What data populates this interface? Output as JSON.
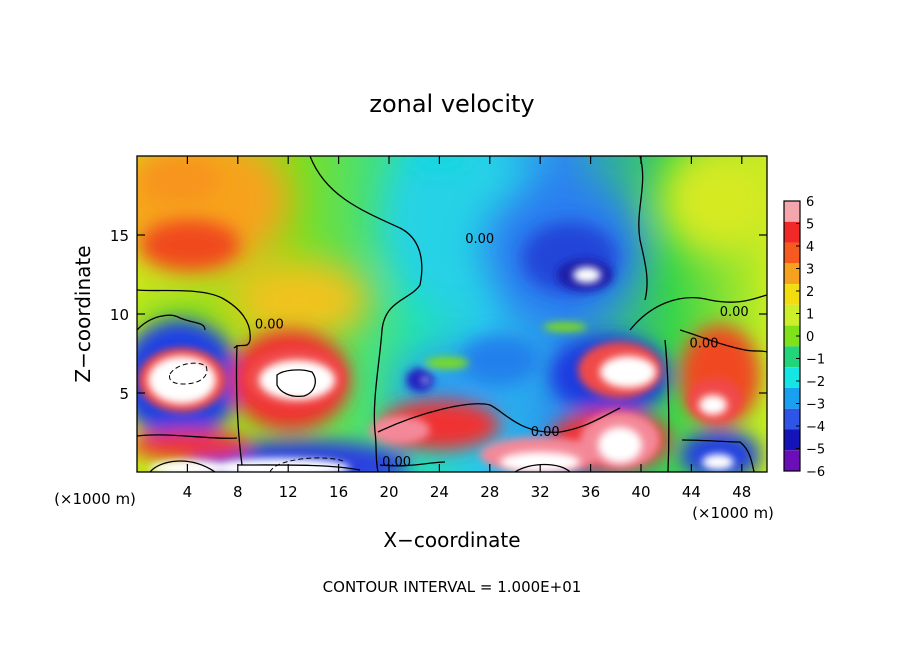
{
  "chart_data": {
    "type": "heatmap",
    "title": "zonal velocity",
    "xlabel": "X−coordinate",
    "ylabel": "Z−coordinate",
    "x_unit_left": "(×1000 m)",
    "x_unit_right": "(×1000 m)",
    "footer": "CONTOUR INTERVAL = 1.000E+01",
    "xlim": [
      0,
      50
    ],
    "ylim": [
      0,
      20
    ],
    "x_ticks": [
      4,
      8,
      12,
      16,
      20,
      24,
      28,
      32,
      36,
      40,
      44,
      48
    ],
    "x_tick_labels": [
      "4",
      "8",
      "12",
      "16",
      "20",
      "24",
      "28",
      "32",
      "36",
      "40",
      "44",
      "48"
    ],
    "y_ticks": [
      5,
      10,
      15
    ],
    "y_tick_labels": [
      "5",
      "10",
      "15"
    ],
    "colorbar": {
      "range": [
        -6,
        6
      ],
      "tick_labels": [
        "6",
        "5",
        "4",
        "3",
        "2",
        "1",
        "0",
        "−1",
        "−2",
        "−3",
        "−4",
        "−5",
        "−6"
      ],
      "colors": [
        "#f4a6ad",
        "#f02828",
        "#f75a1e",
        "#f7a21e",
        "#f2de10",
        "#cdee2a",
        "#7ee11a",
        "#22d47a",
        "#14e6e6",
        "#1aa0f0",
        "#2e54e8",
        "#1414b8",
        "#6a0eb8"
      ]
    },
    "contour_labels": [
      {
        "x": 27.2,
        "z": 14.8,
        "text": "0.00"
      },
      {
        "x": 10.5,
        "z": 9.4,
        "text": "0.00"
      },
      {
        "x": 47.4,
        "z": 10.2,
        "text": "0.00"
      },
      {
        "x": 45.0,
        "z": 8.2,
        "text": "0.00"
      },
      {
        "x": 32.4,
        "z": 2.6,
        "text": "0.00"
      },
      {
        "x": 20.6,
        "z": 0.7,
        "text": "0.00"
      }
    ],
    "features": [
      {
        "x": 4.5,
        "z": 15.2,
        "value": 4
      },
      {
        "x": 8.0,
        "z": 18.5,
        "value": 3
      },
      {
        "x": 14.0,
        "z": 12.0,
        "value": 2.5
      },
      {
        "x": 34.5,
        "z": 14.0,
        "value": -4
      },
      {
        "x": 35.5,
        "z": 12.3,
        "value": -6
      },
      {
        "x": 4.0,
        "z": 6.0,
        "value": 6
      },
      {
        "x": 13.5,
        "z": 5.8,
        "value": 6
      },
      {
        "x": 22.5,
        "z": 5.7,
        "value": -5
      },
      {
        "x": 38.0,
        "z": 5.8,
        "value": 6
      },
      {
        "x": 45.5,
        "z": 5.0,
        "value": 5
      },
      {
        "x": 8.0,
        "z": 1.0,
        "value": 5
      },
      {
        "x": 14.0,
        "z": 0.8,
        "value": 6
      },
      {
        "x": 29.0,
        "z": 1.2,
        "value": 6
      },
      {
        "x": 38.5,
        "z": 1.8,
        "value": 6
      }
    ]
  }
}
